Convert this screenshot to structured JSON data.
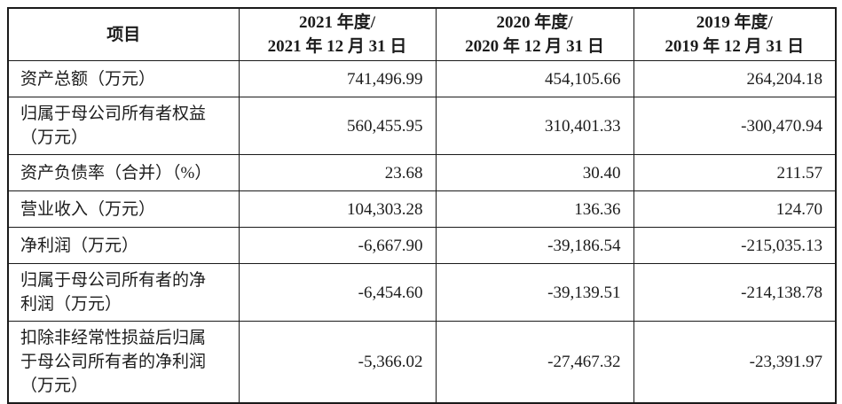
{
  "table": {
    "columns": {
      "item": {
        "label": "项目"
      },
      "y2021": {
        "line1": "2021 年度/",
        "line2": "2021 年 12 月 31 日"
      },
      "y2020": {
        "line1": "2020 年度/",
        "line2": "2020 年 12 月 31 日"
      },
      "y2019": {
        "line1": "2019 年度/",
        "line2": "2019 年 12 月 31 日"
      }
    },
    "rows": [
      {
        "label": "资产总额（万元）",
        "v2021": "741,496.99",
        "v2020": "454,105.66",
        "v2019": "264,204.18"
      },
      {
        "label": "归属于母公司所有者权益（万元）",
        "v2021": "560,455.95",
        "v2020": "310,401.33",
        "v2019": "-300,470.94"
      },
      {
        "label": "资产负债率（合并）（%）",
        "v2021": "23.68",
        "v2020": "30.40",
        "v2019": "211.57"
      },
      {
        "label": "营业收入（万元）",
        "v2021": "104,303.28",
        "v2020": "136.36",
        "v2019": "124.70"
      },
      {
        "label": "净利润（万元）",
        "v2021": "-6,667.90",
        "v2020": "-39,186.54",
        "v2019": "-215,035.13"
      },
      {
        "label": "归属于母公司所有者的净利润（万元）",
        "v2021": "-6,454.60",
        "v2020": "-39,139.51",
        "v2019": "-214,138.78"
      },
      {
        "label": "扣除非经常性损益后归属于母公司所有者的净利润（万元）",
        "v2021": "-5,366.02",
        "v2020": "-27,467.32",
        "v2019": "-23,391.97"
      }
    ]
  }
}
